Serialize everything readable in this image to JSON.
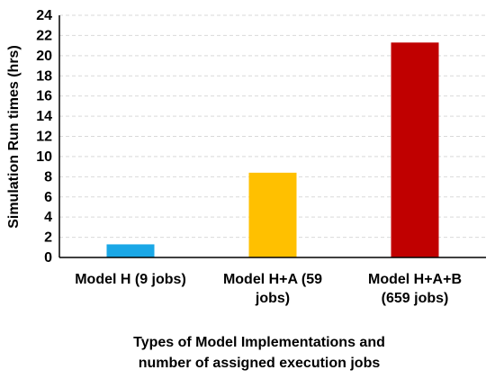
{
  "chart_data": {
    "type": "bar",
    "categories": [
      [
        "Model H (9 jobs)"
      ],
      [
        "Model H+A (59",
        "jobs)"
      ],
      [
        "Model H+A+B",
        "(659 jobs)"
      ]
    ],
    "values": [
      1.3,
      8.4,
      21.3
    ],
    "colors": [
      "#1AA7E6",
      "#FFC000",
      "#C00000"
    ],
    "ylabel": "Simulation Run times (hrs)",
    "xlabel": [
      "Types of Model Implementations and",
      "number of assigned execution jobs"
    ],
    "ylim": [
      0,
      24
    ],
    "yticks": [
      0,
      2,
      4,
      6,
      8,
      10,
      12,
      14,
      16,
      18,
      20,
      22,
      24
    ],
    "grid": true,
    "grid_color": "#D9D9D9",
    "axis_color": "#000000"
  }
}
